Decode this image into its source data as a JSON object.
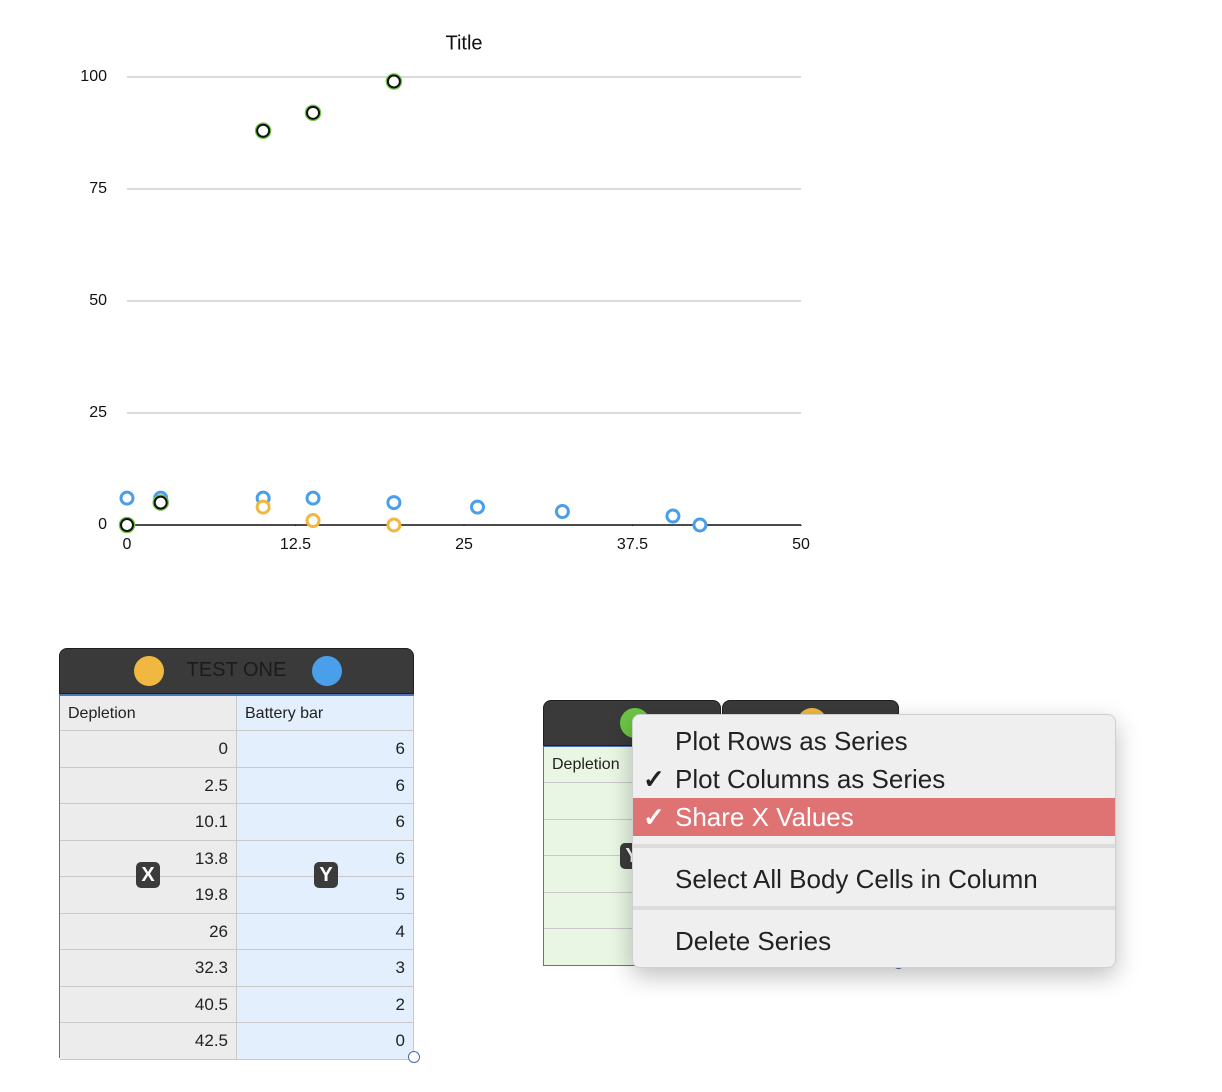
{
  "chart_data": {
    "type": "scatter",
    "title": "Title",
    "x": [
      0,
      2.5,
      10.1,
      13.8,
      19.8,
      26,
      32.3,
      40.5,
      42.5
    ],
    "series": [
      {
        "name": "Battery bar",
        "color": "#4a9fea",
        "values": [
          6,
          6,
          6,
          6,
          5,
          4,
          3,
          2,
          0
        ]
      },
      {
        "color": "#f0b840",
        "values": [
          null,
          null,
          4,
          1,
          0,
          null,
          null,
          null,
          null
        ]
      },
      {
        "color": "#6cc644",
        "values": [
          0,
          5,
          88,
          92,
          99,
          null,
          null,
          null,
          null
        ]
      }
    ],
    "xlim": [
      0,
      50
    ],
    "xticks": [
      0,
      12.5,
      25,
      37.5,
      50
    ],
    "ylim": [
      0,
      100
    ],
    "yticks": [
      0,
      25,
      50,
      75,
      100
    ],
    "grid": true
  },
  "table1": {
    "title": "TEST ONE",
    "columns": [
      "Depletion",
      "Battery bar"
    ],
    "x_badge": "X",
    "y_badge": "Y"
  },
  "table2": {
    "columns": [
      "Depletion"
    ],
    "y_badge": "Y"
  },
  "menu": {
    "items": [
      {
        "label": "Plot Rows as Series",
        "checked": false
      },
      {
        "label": "Plot Columns as Series",
        "checked": true
      },
      {
        "label": "Share X Values",
        "checked": true,
        "highlighted": true
      },
      {
        "label": "Select All Body Cells in Column",
        "checked": false,
        "separator_before": true
      },
      {
        "label": "Delete Series",
        "checked": false,
        "separator_before": true
      }
    ]
  }
}
